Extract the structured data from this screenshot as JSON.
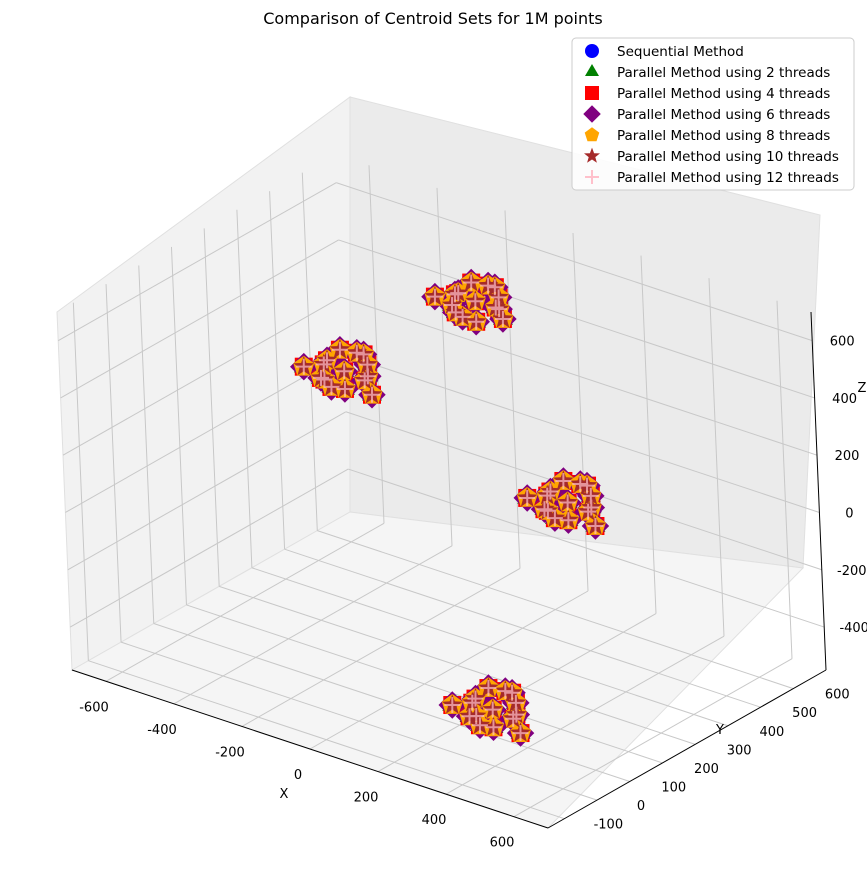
{
  "chart_data": {
    "type": "scatter3d",
    "title": "Comparison of Centroid Sets for 1M points",
    "xlabel": "X",
    "ylabel": "Y",
    "zlabel": "Z",
    "xlim": [
      -700,
      700
    ],
    "ylim": [
      -150,
      700
    ],
    "zlim": [
      -550,
      700
    ],
    "x_ticks": [
      "-600",
      "-400",
      "-200",
      "0",
      "200",
      "400",
      "600"
    ],
    "y_ticks": [
      "-100",
      "0",
      "100",
      "200",
      "300",
      "400",
      "500",
      "600"
    ],
    "z_ticks": [
      "-400",
      "-200",
      "0",
      "200",
      "400",
      "600"
    ],
    "grid": true,
    "legend_position": "top-right",
    "series": [
      {
        "name": "Sequential Method",
        "color": "#0000ff",
        "marker": "circle"
      },
      {
        "name": "Parallel Method using 2 threads",
        "color": "#008000",
        "marker": "triangle"
      },
      {
        "name": "Parallel Method using 4 threads",
        "color": "#ff0000",
        "marker": "square"
      },
      {
        "name": "Parallel Method using 6 threads",
        "color": "#800080",
        "marker": "diamond"
      },
      {
        "name": "Parallel Method using 8 threads",
        "color": "#ffa500",
        "marker": "pentagon"
      },
      {
        "name": "Parallel Method using 10 threads",
        "color": "#a52a2a",
        "marker": "star"
      },
      {
        "name": "Parallel Method using 12 threads",
        "color": "#ffc0cb",
        "marker": "plus"
      }
    ],
    "clusters": [
      {
        "center": [
          -500,
          500,
          150
        ],
        "points": [
          [
            -500,
            500,
            150
          ],
          [
            -450,
            520,
            180
          ],
          [
            -550,
            480,
            120
          ],
          [
            -480,
            540,
            100
          ],
          [
            -520,
            470,
            200
          ],
          [
            -430,
            500,
            160
          ],
          [
            -570,
            510,
            140
          ],
          [
            -500,
            560,
            170
          ],
          [
            -460,
            460,
            130
          ],
          [
            -540,
            530,
            190
          ],
          [
            -410,
            490,
            110
          ],
          [
            -590,
            470,
            150
          ],
          [
            -470,
            510,
            220
          ],
          [
            -530,
            490,
            90
          ],
          [
            -500,
            440,
            160
          ]
        ]
      },
      {
        "center": [
          -150,
          550,
          500
        ],
        "points": [
          [
            -150,
            550,
            500
          ],
          [
            -100,
            570,
            520
          ],
          [
            -200,
            530,
            480
          ],
          [
            -130,
            590,
            460
          ],
          [
            -170,
            520,
            540
          ],
          [
            -80,
            550,
            500
          ],
          [
            -220,
            560,
            490
          ],
          [
            -150,
            610,
            510
          ],
          [
            -110,
            510,
            470
          ],
          [
            -190,
            580,
            530
          ],
          [
            -60,
            540,
            480
          ],
          [
            -240,
            520,
            500
          ],
          [
            -120,
            560,
            560
          ],
          [
            -180,
            540,
            440
          ],
          [
            -150,
            490,
            500
          ]
        ]
      },
      {
        "center": [
          200,
          450,
          0
        ],
        "points": [
          [
            200,
            450,
            0
          ],
          [
            250,
            470,
            30
          ],
          [
            150,
            430,
            -30
          ],
          [
            220,
            490,
            -50
          ],
          [
            180,
            420,
            50
          ],
          [
            270,
            450,
            10
          ],
          [
            130,
            460,
            -10
          ],
          [
            200,
            510,
            20
          ],
          [
            240,
            410,
            -20
          ],
          [
            160,
            480,
            40
          ],
          [
            290,
            440,
            -40
          ],
          [
            110,
            420,
            0
          ],
          [
            230,
            460,
            70
          ],
          [
            170,
            440,
            -60
          ],
          [
            200,
            390,
            10
          ]
        ]
      },
      {
        "center": [
          450,
          -50,
          -300
        ],
        "points": [
          [
            450,
            -50,
            -300
          ],
          [
            500,
            -30,
            -270
          ],
          [
            400,
            -70,
            -330
          ],
          [
            470,
            -10,
            -350
          ],
          [
            430,
            -80,
            -250
          ],
          [
            520,
            -50,
            -290
          ],
          [
            380,
            -40,
            -310
          ],
          [
            450,
            10,
            -280
          ],
          [
            490,
            -90,
            -320
          ],
          [
            410,
            -20,
            -260
          ],
          [
            540,
            -60,
            -340
          ],
          [
            360,
            -80,
            -300
          ],
          [
            480,
            -40,
            -230
          ],
          [
            420,
            -60,
            -360
          ],
          [
            450,
            -100,
            -290
          ]
        ]
      }
    ]
  }
}
